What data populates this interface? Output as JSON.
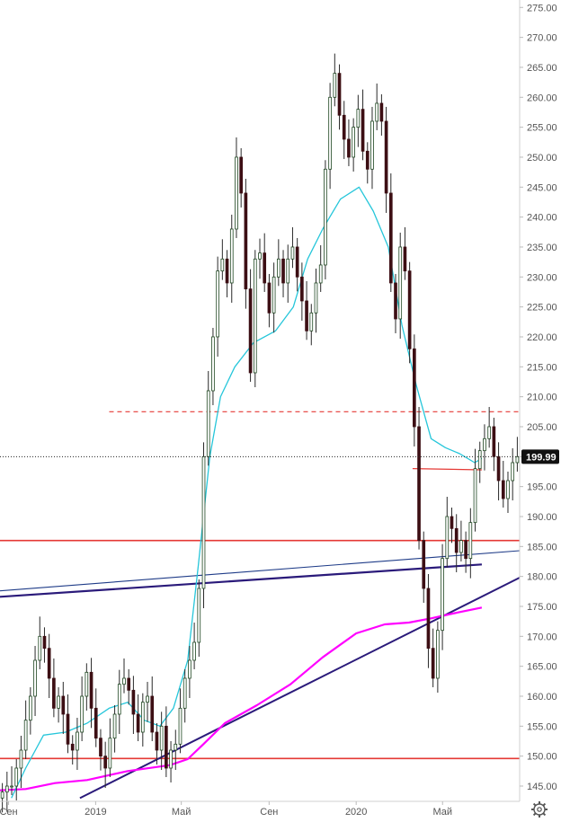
{
  "chart_data": {
    "type": "candlestick",
    "ylim": [
      143,
      277
    ],
    "x_range": [
      "2018-08-20",
      "2020-08-17"
    ],
    "x_ticks": [
      {
        "date": "2018-09-01",
        "label": "Сен"
      },
      {
        "date": "2019-01-01",
        "label": "2019"
      },
      {
        "date": "2019-05-01",
        "label": "Май"
      },
      {
        "date": "2019-09-01",
        "label": "Сен"
      },
      {
        "date": "2020-01-01",
        "label": "2020"
      },
      {
        "date": "2020-05-01",
        "label": "Май"
      }
    ],
    "y_ticks": [
      145,
      150,
      155,
      160,
      165,
      170,
      175,
      180,
      185,
      190,
      195,
      200,
      205,
      210,
      215,
      220,
      225,
      230,
      235,
      240,
      245,
      250,
      255,
      260,
      265,
      270,
      275
    ],
    "y_tick_labels": [
      "145.00",
      "150.00",
      "155.00",
      "160.00",
      "165.00",
      "170.00",
      "175.00",
      "180.00",
      "185.00",
      "190.00",
      "195.00",
      "200.00",
      "205.00",
      "210.00",
      "215.00",
      "220.00",
      "225.00",
      "230.00",
      "235.00",
      "240.00",
      "245.00",
      "250.00",
      "255.00",
      "260.00",
      "265.00",
      "270.00",
      "275.00"
    ],
    "last_price": 199.99,
    "last_price_label": "199.99",
    "grid": false,
    "colors": {
      "up_body": "#ffffff",
      "up_border": "#1e4620",
      "down_body": "#3d0f14",
      "wick": "#2a2a2a",
      "ma_short": "#26c6da",
      "ma_long": "#ff00ff",
      "support_red": "#e53935",
      "trend_navy": "#2a1a7a",
      "trend_blue": "#1f3c88",
      "price_badge": "#111111",
      "axis_text": "#555555"
    },
    "candle_closes": [
      144,
      145,
      145,
      148,
      151,
      156,
      160,
      166,
      170,
      168,
      163,
      158,
      160,
      157,
      152,
      151,
      154,
      160,
      164,
      158,
      153,
      150,
      148,
      153,
      157,
      162,
      163,
      161,
      157,
      154,
      159,
      160,
      154,
      151,
      155,
      148,
      151,
      152,
      158,
      163,
      166,
      169,
      178,
      200,
      211,
      220,
      231,
      233,
      229,
      238,
      250,
      244,
      228,
      214,
      233,
      234,
      229,
      224,
      230,
      233,
      229,
      233,
      235,
      230,
      226,
      221,
      224,
      229,
      232,
      248,
      260,
      264,
      257,
      253,
      250,
      255,
      258,
      251,
      248,
      256,
      259,
      256,
      244,
      229,
      223,
      235,
      231,
      218,
      205,
      186,
      178,
      168,
      163,
      171,
      183,
      190,
      188,
      184,
      186,
      183,
      189,
      198,
      201,
      203,
      205,
      200,
      196,
      193,
      196,
      199,
      200
    ],
    "lines": {
      "support_low": {
        "value": 149.6
      },
      "support_mid": {
        "value": 186.0
      },
      "resistance_dashed": {
        "value": 207.5
      },
      "short_resistance": {
        "start": [
          "2020-03-20",
          198.0
        ],
        "end": [
          "2020-06-25",
          197.8
        ]
      },
      "trend_upper": {
        "start": [
          "2018-08-20",
          177.6
        ],
        "end": [
          "2020-08-17",
          184.3
        ]
      },
      "trend_mid": {
        "start": [
          "2018-08-20",
          176.6
        ],
        "end": [
          "2020-06-25",
          182.0
        ]
      },
      "trend_rising": {
        "start": [
          "2018-12-10",
          143.0
        ],
        "end": [
          "2020-08-17",
          179.8
        ]
      }
    },
    "ma_short": [
      [
        "2018-09-05",
        143.0
      ],
      [
        "2018-09-25",
        148.0
      ],
      [
        "2018-10-20",
        153.5
      ],
      [
        "2018-11-20",
        154.0
      ],
      [
        "2018-12-20",
        155.5
      ],
      [
        "2019-01-20",
        158.0
      ],
      [
        "2019-02-15",
        159.0
      ],
      [
        "2019-03-10",
        156.0
      ],
      [
        "2019-04-01",
        155.0
      ],
      [
        "2019-04-20",
        158.0
      ],
      [
        "2019-05-10",
        166.0
      ],
      [
        "2019-05-25",
        182.0
      ],
      [
        "2019-06-10",
        200.0
      ],
      [
        "2019-06-25",
        210.0
      ],
      [
        "2019-07-15",
        215.0
      ],
      [
        "2019-08-10",
        219.0
      ],
      [
        "2019-09-10",
        221.0
      ],
      [
        "2019-10-05",
        225.0
      ],
      [
        "2019-10-25",
        233.0
      ],
      [
        "2019-11-15",
        238.0
      ],
      [
        "2019-12-10",
        243.0
      ],
      [
        "2020-01-05",
        245.0
      ],
      [
        "2020-01-25",
        241.0
      ],
      [
        "2020-02-15",
        235.0
      ],
      [
        "2020-03-05",
        222.0
      ],
      [
        "2020-03-25",
        212.0
      ],
      [
        "2020-04-15",
        203.0
      ],
      [
        "2020-05-05",
        201.5
      ],
      [
        "2020-05-25",
        200.5
      ],
      [
        "2020-06-15",
        199.0
      ],
      [
        "2020-06-25",
        199.7
      ]
    ],
    "ma_long": [
      [
        "2018-08-20",
        144.3
      ],
      [
        "2018-09-25",
        144.5
      ],
      [
        "2018-11-05",
        145.5
      ],
      [
        "2018-12-20",
        146.0
      ],
      [
        "2019-02-15",
        147.5
      ],
      [
        "2019-04-15",
        148.5
      ],
      [
        "2019-05-10",
        149.5
      ],
      [
        "2019-06-01",
        152.0
      ],
      [
        "2019-07-01",
        155.5
      ],
      [
        "2019-08-15",
        158.5
      ],
      [
        "2019-10-01",
        162.0
      ],
      [
        "2019-11-15",
        166.5
      ],
      [
        "2020-01-01",
        170.5
      ],
      [
        "2020-02-10",
        172.0
      ],
      [
        "2020-03-15",
        172.3
      ],
      [
        "2020-04-15",
        173.0
      ],
      [
        "2020-05-15",
        173.8
      ],
      [
        "2020-06-25",
        174.8
      ]
    ],
    "icons": {
      "settings": "gear-icon"
    }
  }
}
